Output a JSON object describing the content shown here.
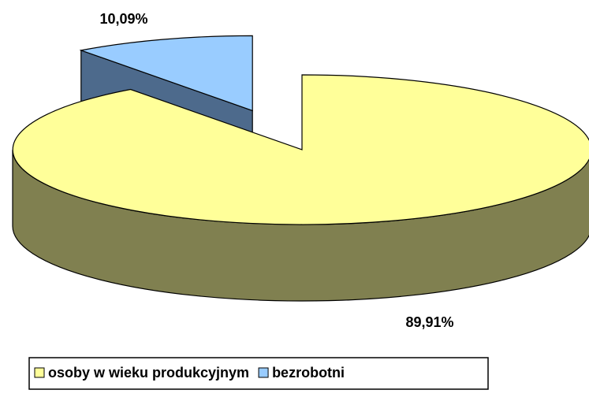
{
  "chart_data": {
    "type": "pie3d",
    "categories": [
      "osoby w wieku produkcyjnym",
      "bezrobotni"
    ],
    "values": [
      89.91,
      10.09
    ],
    "value_labels": [
      "89,91%",
      "10,09%"
    ],
    "colors": [
      "#ffff99",
      "#99ccff"
    ],
    "side_colors": [
      "#808050",
      "#4d6a8c"
    ],
    "legend": "bottom"
  }
}
